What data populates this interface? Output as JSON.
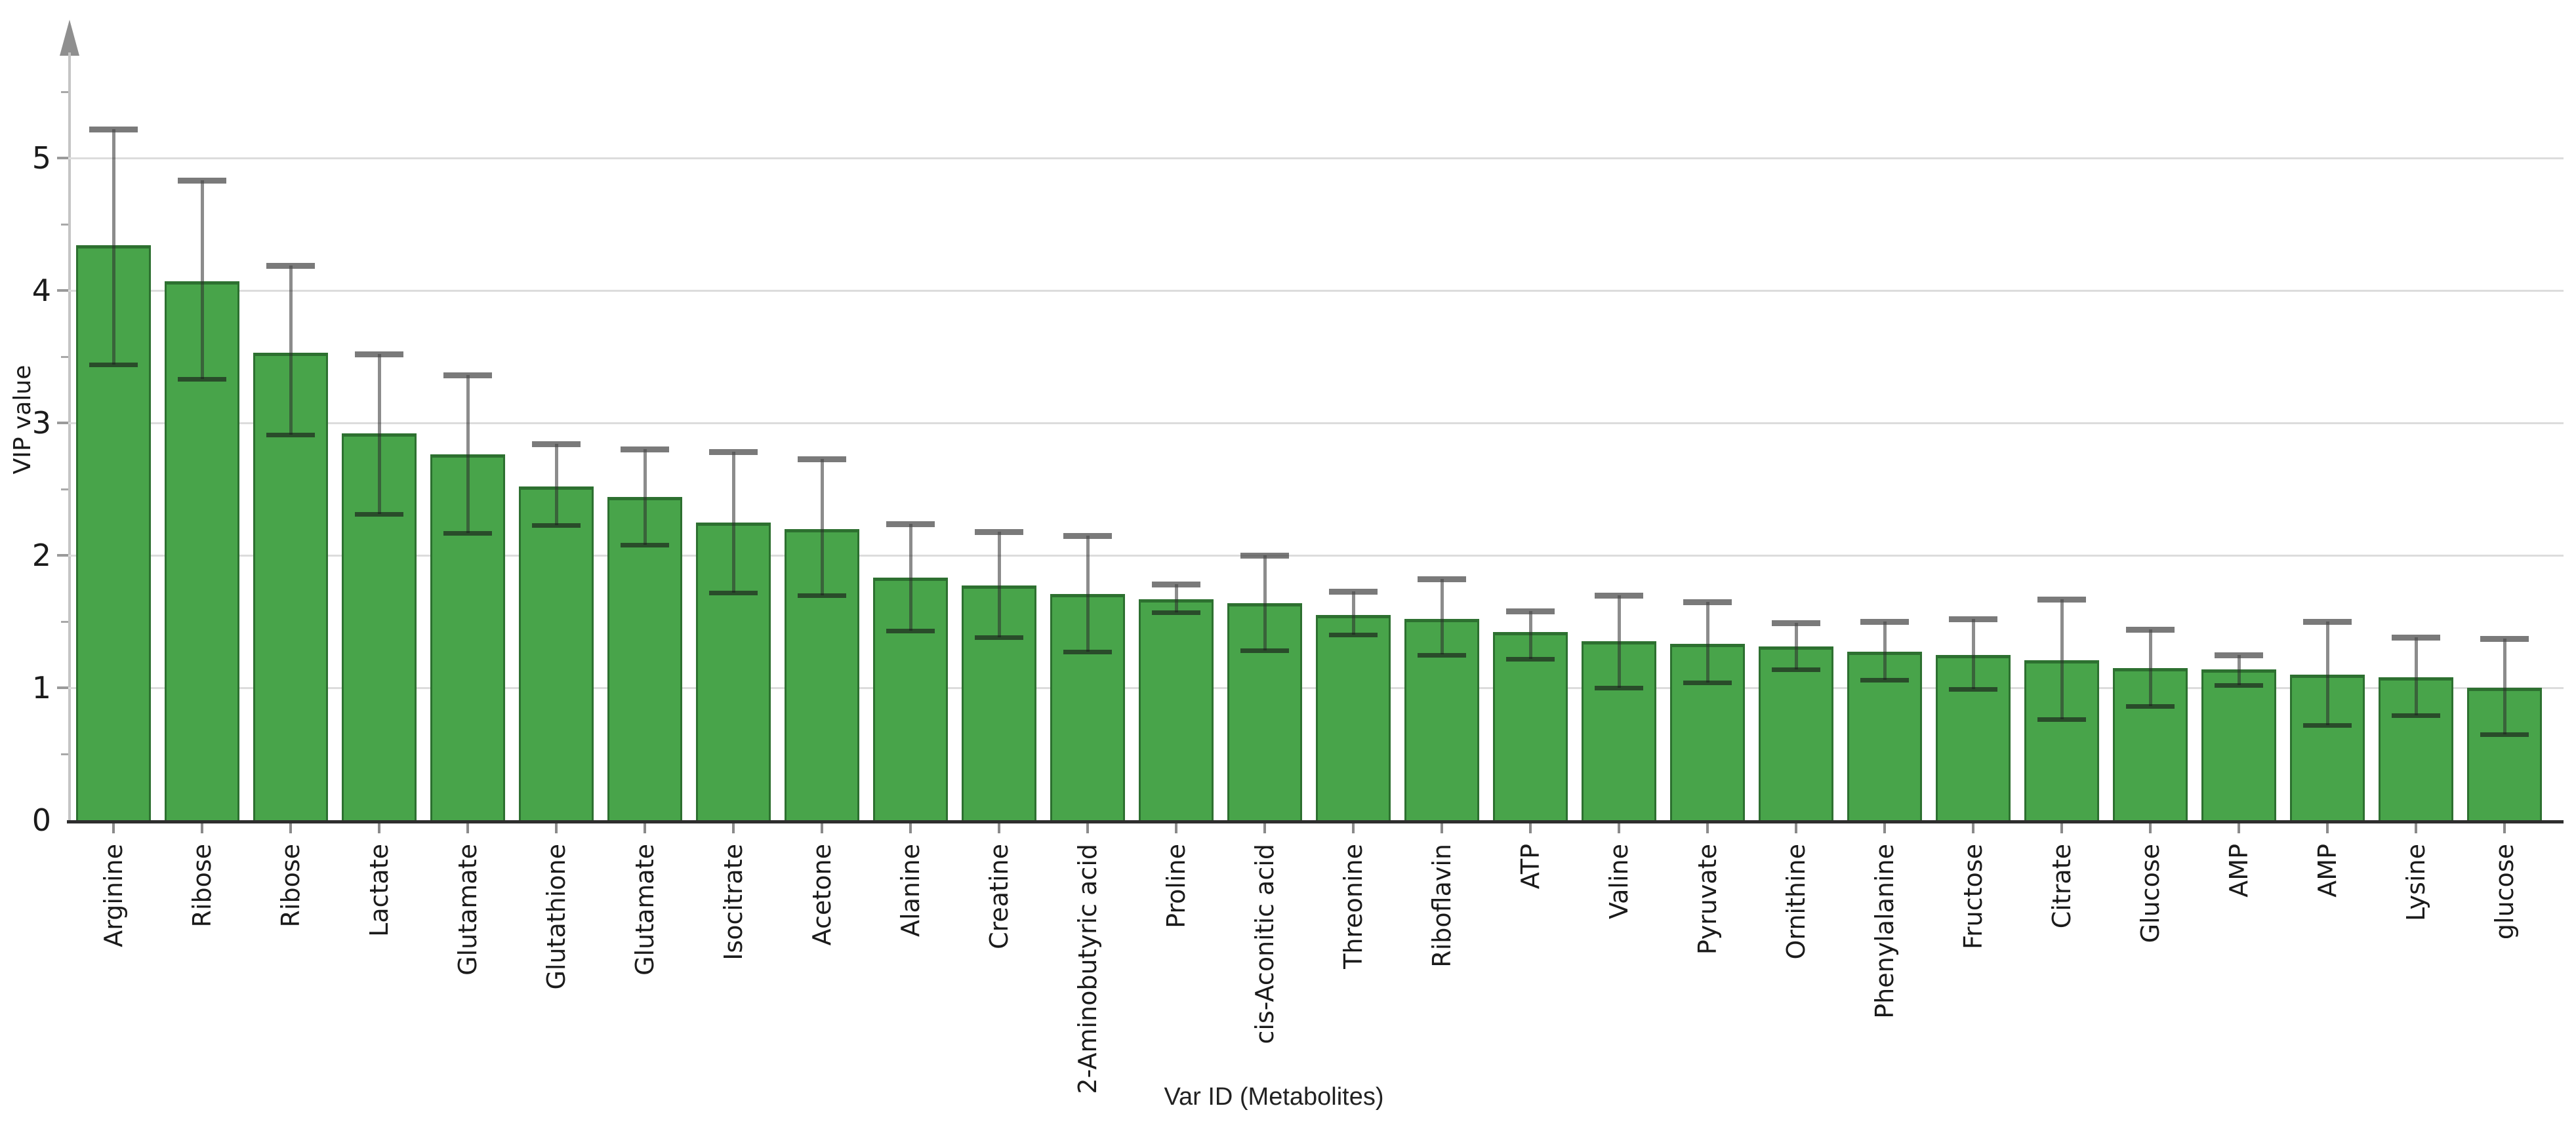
{
  "chart_data": {
    "type": "bar",
    "title": "",
    "xlabel": "Var ID (Metabolites)",
    "ylabel": "VIP value",
    "legend": "none",
    "grid": "horizontal-major",
    "ylim": [
      0,
      5.7
    ],
    "yticks": [
      0,
      1,
      2,
      3,
      4,
      5
    ],
    "y_minor_tick_step": 0.5,
    "categories": [
      "Arginine",
      "Ribose",
      "Ribose",
      "Lactate",
      "Glutamate",
      "Glutathione",
      "Glutamate",
      "Isocitrate",
      "Acetone",
      "Alanine",
      "Creatine",
      "2-Aminobutyric acid",
      "Proline",
      "cis-Aconitic acid",
      "Threonine",
      "Riboflavin",
      "ATP",
      "Valine",
      "Pyruvate",
      "Ornithine",
      "Phenylalanine",
      "Fructose",
      "Citrate",
      "Glucose",
      "AMP",
      "AMP",
      "Lysine",
      "glucose"
    ],
    "values": [
      4.34,
      4.07,
      3.53,
      2.92,
      2.76,
      2.52,
      2.44,
      2.25,
      2.2,
      1.83,
      1.77,
      1.71,
      1.67,
      1.64,
      1.55,
      1.52,
      1.42,
      1.35,
      1.33,
      1.31,
      1.27,
      1.25,
      1.21,
      1.15,
      1.14,
      1.1,
      1.08,
      1.0
    ],
    "error_low": [
      3.44,
      3.33,
      2.91,
      2.31,
      2.17,
      2.23,
      2.08,
      1.72,
      1.7,
      1.43,
      1.38,
      1.27,
      1.57,
      1.28,
      1.4,
      1.25,
      1.22,
      1.0,
      1.04,
      1.14,
      1.06,
      0.99,
      0.76,
      0.86,
      1.02,
      0.72,
      0.79,
      0.65
    ],
    "error_high": [
      5.22,
      4.83,
      4.19,
      3.52,
      3.36,
      2.84,
      2.8,
      2.78,
      2.73,
      2.24,
      2.18,
      2.15,
      1.78,
      2.0,
      1.73,
      1.82,
      1.58,
      1.7,
      1.65,
      1.49,
      1.5,
      1.52,
      1.67,
      1.44,
      1.25,
      1.5,
      1.38,
      1.37
    ],
    "bar_color": "#48a44a",
    "bar_border_color": "#2d7030",
    "error_bar_color": "#6e6e6e",
    "gridline_color": "#dcdcdc",
    "y_axis_color": "#c4c4c4",
    "x_axis_color": "#2e2e2e",
    "text_color": "#1b1b1b"
  }
}
